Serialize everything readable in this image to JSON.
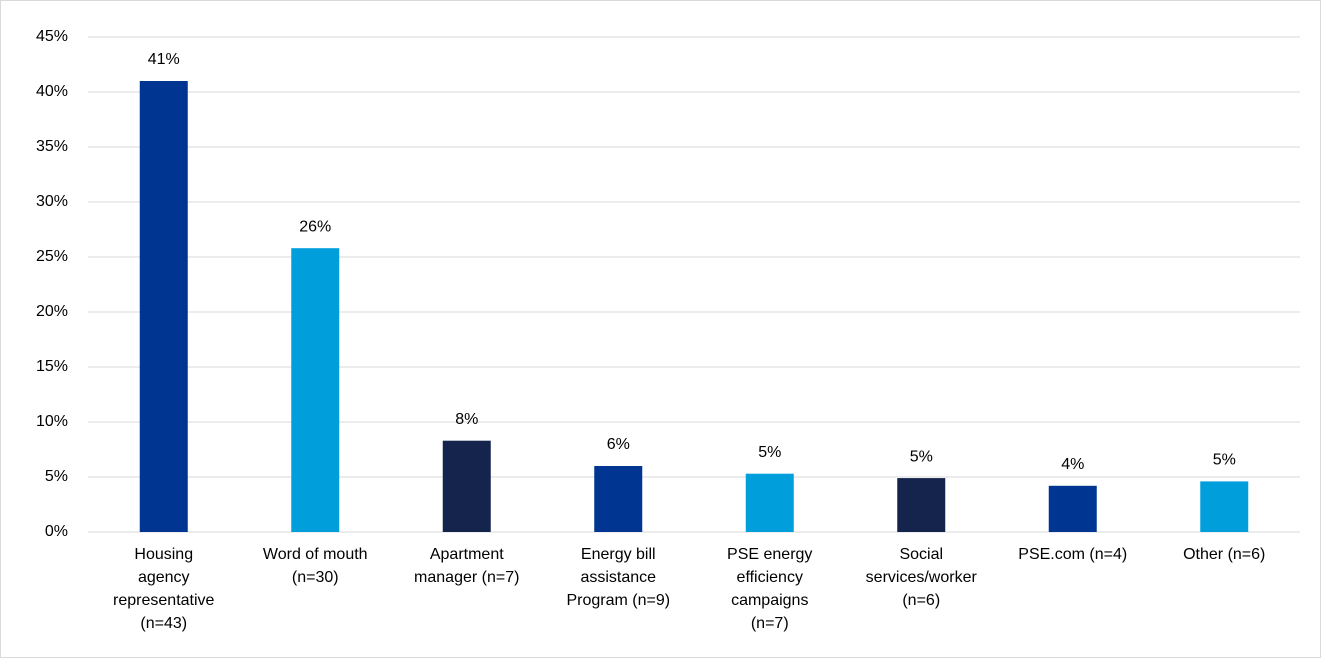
{
  "chart_data": {
    "type": "bar",
    "categories": [
      "Housing\nagency\nrepresentative\n(n=43)",
      "Word of mouth\n(n=30)",
      "Apartment\nmanager (n=7)",
      "Energy bill\nassistance\nProgram (n=9)",
      "PSE energy\nefficiency\ncampaigns\n(n=7)",
      "Social\nservices/worker\n(n=6)",
      "PSE.com (n=4)",
      "Other (n=6)"
    ],
    "values": [
      41,
      25.8,
      8.3,
      6.0,
      5.3,
      4.9,
      4.2,
      4.6
    ],
    "value_labels": [
      "41%",
      "26%",
      "8%",
      "6%",
      "5%",
      "5%",
      "4%",
      "5%"
    ],
    "colors": [
      "#003591",
      "#009fdb",
      "#14244c",
      "#003591",
      "#009fdb",
      "#14244c",
      "#003591",
      "#009fdb"
    ],
    "ylim": [
      0,
      45
    ],
    "yticks": [
      {
        "value": 0,
        "label": "0%"
      },
      {
        "value": 5,
        "label": "5%"
      },
      {
        "value": 10,
        "label": "10%"
      },
      {
        "value": 15,
        "label": "15%"
      },
      {
        "value": 20,
        "label": "20%"
      },
      {
        "value": 25,
        "label": "25%"
      },
      {
        "value": 30,
        "label": "30%"
      },
      {
        "value": 35,
        "label": "35%"
      },
      {
        "value": 40,
        "label": "40%"
      },
      {
        "value": 45,
        "label": "45%"
      }
    ],
    "grid": true
  }
}
